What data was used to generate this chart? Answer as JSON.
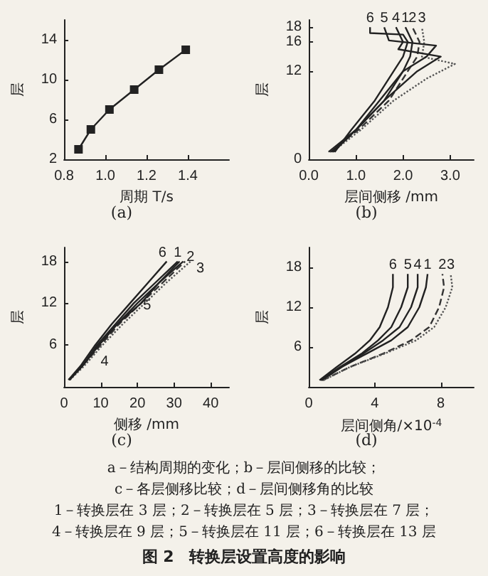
{
  "chart_data": [
    {
      "type": "line",
      "title": "(a)",
      "xlabel": "周期 T/s",
      "ylabel": "层",
      "x": [
        0.87,
        0.93,
        1.02,
        1.14,
        1.26,
        1.39
      ],
      "values": [
        3,
        5,
        7,
        9,
        11,
        13
      ],
      "color": "#222222",
      "marker": "square",
      "xlim": [
        0.8,
        1.6
      ],
      "xticks": [
        0.8,
        {
          "value": 1.0,
          "label": "1.0"
        },
        1.2,
        1.4
      ],
      "ylim": [
        2,
        16
      ],
      "yticks": [
        2,
        6,
        10,
        14
      ],
      "grid": false
    },
    {
      "type": "line",
      "title": "(b)",
      "xlabel": "层间侧移 /mm",
      "ylabel": "层",
      "xlim": [
        0,
        3.5
      ],
      "xticks": [
        {
          "value": 0,
          "label": "0.0"
        },
        {
          "value": 1,
          "label": "1.0"
        },
        {
          "value": 2,
          "label": "2.0"
        },
        {
          "value": 3,
          "label": "3.0"
        }
      ],
      "ylim": [
        0,
        19
      ],
      "yticks": [
        0,
        12,
        16,
        18
      ],
      "grid": false,
      "marker": "none",
      "series": [
        {
          "name": "1",
          "color": "#222222",
          "x": [
            0.42,
            1.0,
            1.6,
            2.0,
            2.15,
            2.2,
            2.05
          ],
          "values": [
            1,
            4,
            8,
            12,
            14,
            16,
            18
          ]
        },
        {
          "name": "2",
          "color": "#333333",
          "line_style": "dashed",
          "x": [
            0.45,
            1.05,
            1.7,
            2.1,
            2.3,
            2.35,
            2.2
          ],
          "values": [
            1,
            4,
            8,
            12,
            14,
            16,
            18
          ]
        },
        {
          "name": "3",
          "color": "#555555",
          "line_style": "dotted",
          "x": [
            0.5,
            1.1,
            1.8,
            2.5,
            3.1,
            2.4,
            2.45,
            2.4
          ],
          "values": [
            1,
            4,
            8,
            11,
            13,
            14,
            16,
            18
          ]
        },
        {
          "name": "4",
          "color": "#222222",
          "x": [
            0.48,
            1.0,
            1.6,
            2.3,
            2.8,
            1.9,
            2.0,
            1.85
          ],
          "values": [
            1,
            4,
            8,
            12,
            14,
            15,
            16,
            18
          ]
        },
        {
          "name": "5",
          "color": "#222222",
          "x": [
            0.52,
            1.0,
            1.5,
            2.0,
            2.5,
            2.7,
            1.7,
            1.6
          ],
          "values": [
            1,
            4,
            8,
            12,
            14,
            15.5,
            16.2,
            18
          ]
        },
        {
          "name": "6",
          "color": "#222222",
          "x": [
            0.55,
            0.9,
            1.4,
            1.8,
            2.0,
            2.1,
            2.0,
            1.3,
            1.3
          ],
          "values": [
            1,
            4,
            8,
            12,
            14,
            16,
            17,
            17.2,
            18
          ]
        }
      ]
    },
    {
      "type": "line",
      "title": "(c)",
      "xlabel": "侧移 /mm",
      "ylabel": "层",
      "xlim": [
        0,
        45
      ],
      "xticks": [
        0,
        10,
        20,
        30,
        40
      ],
      "ylim": [
        0,
        20
      ],
      "yticks": [
        6,
        12,
        18
      ],
      "grid": false,
      "marker": "none",
      "series": [
        {
          "name": "1",
          "color": "#222222",
          "x": [
            1.4,
            5,
            9,
            14,
            19,
            25,
            31
          ],
          "values": [
            1,
            3,
            6,
            9,
            12,
            15,
            18
          ]
        },
        {
          "name": "2",
          "color": "#333333",
          "line_style": "dashed",
          "x": [
            1.5,
            5,
            10,
            15,
            21,
            27,
            33
          ],
          "values": [
            1,
            3,
            6,
            9,
            12,
            15,
            18
          ]
        },
        {
          "name": "3",
          "color": "#555555",
          "line_style": "dotted",
          "x": [
            1.6,
            5.5,
            10.5,
            16,
            22,
            28,
            34.5
          ],
          "values": [
            1,
            3,
            6,
            9,
            12,
            15,
            18
          ]
        },
        {
          "name": "4",
          "color": "#222222",
          "x": [
            1.3,
            5,
            9.5,
            14.5,
            21,
            26,
            31.5
          ],
          "values": [
            1,
            3,
            6,
            9,
            12,
            15,
            18
          ]
        },
        {
          "name": "5",
          "color": "#222222",
          "x": [
            1.45,
            5,
            9.5,
            14.5,
            20,
            26,
            32.5
          ],
          "values": [
            1,
            3,
            6,
            9,
            12,
            15,
            18
          ]
        },
        {
          "name": "6",
          "color": "#222222",
          "x": [
            1.2,
            4.5,
            8.5,
            13,
            18,
            23,
            28
          ],
          "values": [
            1,
            3,
            6,
            9,
            12,
            15,
            18
          ]
        }
      ]
    },
    {
      "type": "line",
      "title": "(d)",
      "xlabel": "层间侧角/×10$^{-4}$",
      "ylabel": "层",
      "xlim": [
        0,
        10
      ],
      "xticks": [
        0,
        4,
        8
      ],
      "ylim": [
        0,
        21
      ],
      "yticks": [
        6,
        12,
        18
      ],
      "grid": false,
      "marker": "none",
      "series": [
        {
          "name": "1",
          "color": "#222222",
          "x": [
            0.8,
            2,
            3.5,
            5,
            6,
            6.7,
            7.1,
            7.2
          ],
          "values": [
            1,
            3,
            5,
            7,
            9,
            12,
            15,
            17
          ]
        },
        {
          "name": "2",
          "color": "#333333",
          "line_style": "dashed",
          "x": [
            0.85,
            2.5,
            4.5,
            6.2,
            7.3,
            7.9,
            8.2,
            8.1
          ],
          "values": [
            1,
            3,
            5,
            7,
            9,
            12,
            15,
            17
          ]
        },
        {
          "name": "3",
          "color": "#555555",
          "line_style": "dotted",
          "x": [
            0.9,
            2.5,
            4.6,
            6.5,
            7.6,
            8.3,
            8.7,
            8.6
          ],
          "values": [
            1,
            3,
            5,
            7,
            9,
            12,
            15,
            17
          ]
        },
        {
          "name": "4",
          "color": "#222222",
          "x": [
            0.75,
            2,
            3.3,
            4.5,
            5.5,
            6.2,
            6.6,
            6.6
          ],
          "values": [
            1,
            3,
            5,
            7,
            9,
            12,
            15,
            17
          ]
        },
        {
          "name": "5",
          "color": "#222222",
          "x": [
            0.7,
            1.9,
            3.2,
            4.2,
            5,
            5.6,
            6,
            6
          ],
          "values": [
            1,
            3,
            5,
            7,
            9,
            12,
            15,
            17
          ]
        },
        {
          "name": "6",
          "color": "#222222",
          "x": [
            0.65,
            1.7,
            2.8,
            3.7,
            4.3,
            4.8,
            5.1,
            5.1
          ],
          "values": [
            1,
            3,
            5,
            7,
            9,
            12,
            15,
            17
          ]
        }
      ]
    },
    {
      "type": "other",
      "title": "图 2　转换层设置高度的影响",
      "annotations": [
        "a－结构周期的变化；b－层间侧移的比较；",
        "c－各层侧移比较；d－层间侧移角的比较",
        "1－转换层在 3 层；2－转换层在 5 层；3－转换层在 7 层；",
        "4－转换层在 9 层；5－转换层在 11 层；6－转换层在 13 层"
      ]
    }
  ]
}
